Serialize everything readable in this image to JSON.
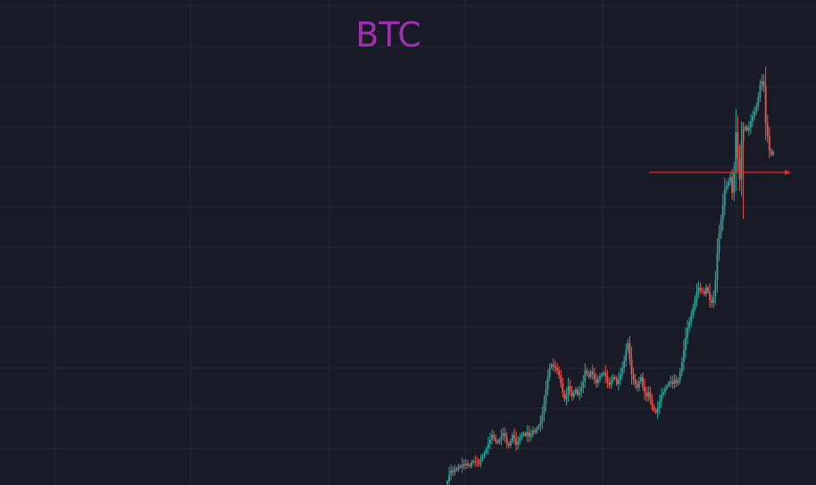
{
  "chart_data": {
    "type": "candlestick",
    "title": "BTC",
    "title_color": "#9f2fb0",
    "background": "#181b25",
    "grid": true,
    "grid_color": "#262a36",
    "up_color": "#26a69a",
    "down_color": "#ef5350",
    "price_line_color": "#e32b2b",
    "y_range": [
      0,
      543
    ],
    "close": [
      4,
      11,
      16,
      14,
      18,
      17,
      21,
      20,
      23,
      22,
      24,
      22,
      21,
      25,
      27,
      26,
      25,
      24,
      29,
      32,
      36,
      41,
      46,
      51,
      56,
      53,
      49,
      47,
      51,
      55,
      58,
      53,
      46,
      44,
      49,
      56,
      52,
      45,
      49,
      53,
      56,
      58,
      55,
      59,
      54,
      57,
      61,
      59,
      63,
      66,
      70,
      79,
      91,
      107,
      121,
      131,
      135,
      133,
      131,
      128,
      123,
      114,
      103,
      96,
      101,
      111,
      105,
      99,
      103,
      107,
      101,
      104,
      109,
      116,
      128,
      125,
      121,
      127,
      124,
      119,
      114,
      118,
      122,
      124,
      126,
      121,
      115,
      112,
      117,
      121,
      119,
      113,
      118,
      124,
      131,
      139,
      151,
      159,
      141,
      124,
      118,
      113,
      109,
      116,
      121,
      110,
      103,
      99,
      104,
      96,
      88,
      84,
      81,
      86,
      93,
      101,
      104,
      108,
      111,
      115,
      116,
      113,
      118,
      114,
      117,
      126,
      138,
      151,
      165,
      176,
      182,
      190,
      198,
      208,
      216,
      221,
      218,
      217,
      214,
      221,
      216,
      207,
      204,
      211,
      229,
      260,
      281,
      296,
      313,
      331,
      335,
      339,
      345,
      327,
      351,
      395,
      366,
      342,
      385,
      398,
      401,
      397,
      400,
      407,
      413,
      418,
      424,
      434,
      448,
      452,
      446,
      405,
      391,
      374,
      370,
      373
    ]
  }
}
